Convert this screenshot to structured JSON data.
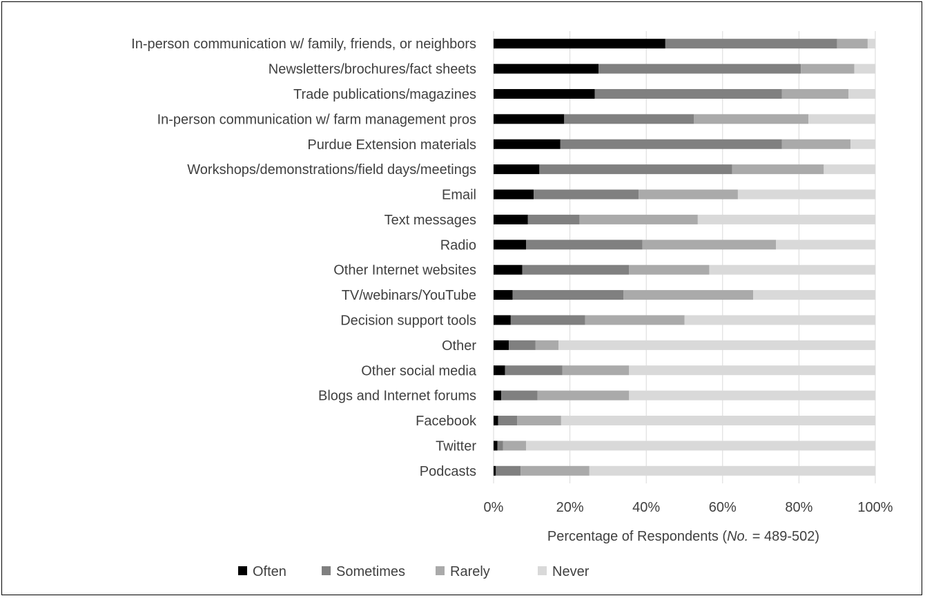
{
  "chart_data": {
    "type": "bar",
    "orientation": "horizontal",
    "stacked": "percent",
    "categories": [
      "In-person communication w/ family, friends, or neighbors",
      "Newsletters/brochures/fact sheets",
      "Trade publications/magazines",
      "In-person communication w/ farm management pros",
      "Purdue Extension materials",
      "Workshops/demonstrations/field days/meetings",
      "Email",
      "Text messages",
      "Radio",
      "Other Internet websites",
      "TV/webinars/YouTube",
      "Decision support tools",
      "Other",
      "Other social media",
      "Blogs and Internet forums",
      "Facebook",
      "Twitter",
      "Podcasts"
    ],
    "series": [
      {
        "name": "Often",
        "color": "#000000",
        "values": [
          45.0,
          27.5,
          26.5,
          18.5,
          17.5,
          12.0,
          10.5,
          9.0,
          8.5,
          7.5,
          5.0,
          4.5,
          4.0,
          3.0,
          2.0,
          1.2,
          1.0,
          0.6
        ]
      },
      {
        "name": "Sometimes",
        "color": "#808080",
        "values": [
          45.0,
          53.0,
          49.0,
          34.0,
          58.0,
          50.5,
          27.5,
          13.5,
          30.5,
          28.0,
          29.0,
          19.5,
          7.0,
          15.0,
          9.5,
          5.0,
          1.5,
          6.5
        ]
      },
      {
        "name": "Rarely",
        "color": "#aaaaaa",
        "values": [
          8.0,
          14.0,
          17.5,
          30.0,
          18.0,
          24.0,
          26.0,
          31.0,
          35.0,
          21.0,
          34.0,
          26.0,
          6.0,
          17.5,
          24.0,
          11.5,
          6.0,
          18.0
        ]
      },
      {
        "name": "Never",
        "color": "#d9d9d9",
        "values": [
          2.0,
          5.5,
          7.0,
          17.5,
          6.5,
          13.5,
          36.0,
          46.5,
          26.0,
          43.5,
          32.0,
          50.0,
          83.0,
          64.5,
          64.5,
          82.3,
          91.5,
          74.9
        ]
      }
    ],
    "x_ticks": [
      "0%",
      "20%",
      "40%",
      "60%",
      "80%",
      "100%"
    ],
    "xlim": [
      0,
      100
    ],
    "xlabel_prefix": "Percentage of Respondents (",
    "xlabel_italic": "No.",
    "xlabel_suffix": " = 489-502)",
    "grid": "vertical",
    "legend_position": "bottom"
  }
}
